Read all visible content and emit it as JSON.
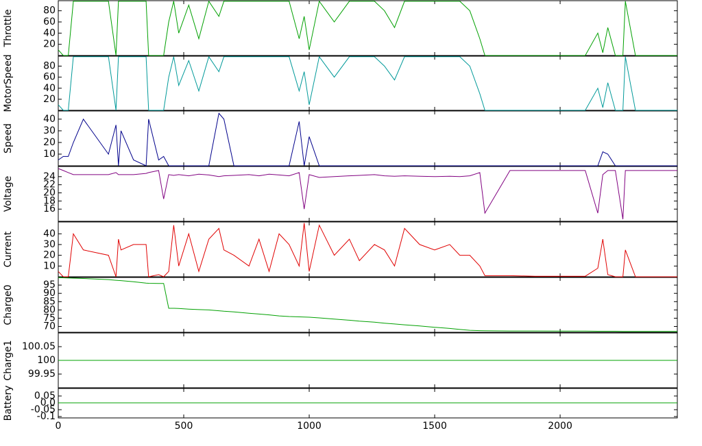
{
  "chart_data": [
    {
      "type": "line",
      "ylabel": "Throttle",
      "color": "#00a000",
      "x": [
        0,
        20,
        40,
        60,
        100,
        200,
        230,
        240,
        250,
        300,
        350,
        360,
        400,
        420,
        440,
        460,
        480,
        520,
        560,
        600,
        640,
        660,
        700,
        760,
        800,
        840,
        880,
        920,
        960,
        980,
        1000,
        1040,
        1100,
        1160,
        1200,
        1260,
        1300,
        1340,
        1380,
        1440,
        1500,
        1560,
        1600,
        1640,
        1680,
        1700,
        1800,
        1900,
        2000,
        2100,
        2150,
        2170,
        2190,
        2220,
        2250,
        2260,
        2300,
        2467
      ],
      "values": [
        10,
        0,
        0,
        97,
        97,
        97,
        0,
        97,
        97,
        97,
        97,
        0,
        0,
        0,
        60,
        97,
        40,
        90,
        30,
        97,
        70,
        97,
        97,
        97,
        97,
        97,
        97,
        97,
        30,
        70,
        10,
        97,
        60,
        97,
        97,
        97,
        80,
        50,
        97,
        97,
        97,
        97,
        97,
        80,
        30,
        0,
        0,
        0,
        0,
        0,
        40,
        5,
        50,
        0,
        0,
        97,
        0,
        0
      ],
      "xlim": [
        0,
        2467
      ],
      "xticks": [
        0,
        500,
        1000,
        1500,
        2000
      ],
      "ylim": [
        0,
        98
      ],
      "yticks": [
        20,
        40,
        60,
        80
      ]
    },
    {
      "type": "line",
      "ylabel": "MotorSpeed",
      "color": "#009999",
      "x": [
        0,
        20,
        40,
        60,
        100,
        200,
        230,
        240,
        250,
        300,
        350,
        360,
        400,
        420,
        440,
        460,
        480,
        520,
        560,
        600,
        640,
        660,
        700,
        760,
        800,
        840,
        880,
        920,
        960,
        980,
        1000,
        1040,
        1100,
        1160,
        1200,
        1260,
        1300,
        1340,
        1380,
        1440,
        1500,
        1560,
        1600,
        1640,
        1680,
        1700,
        1800,
        1900,
        2000,
        2100,
        2150,
        2170,
        2190,
        2220,
        2250,
        2260,
        2300,
        2467
      ],
      "values": [
        10,
        0,
        0,
        97,
        97,
        97,
        0,
        97,
        97,
        97,
        97,
        0,
        0,
        0,
        60,
        97,
        45,
        90,
        35,
        97,
        70,
        97,
        97,
        97,
        97,
        97,
        97,
        97,
        35,
        70,
        10,
        97,
        60,
        97,
        97,
        97,
        80,
        55,
        97,
        97,
        97,
        97,
        97,
        80,
        30,
        0,
        0,
        0,
        0,
        0,
        40,
        5,
        50,
        0,
        0,
        97,
        0,
        0
      ],
      "xlim": [
        0,
        2467
      ],
      "xticks": [
        0,
        500,
        1000,
        1500,
        2000
      ],
      "ylim": [
        0,
        98
      ],
      "yticks": [
        20,
        40,
        60,
        80
      ]
    },
    {
      "type": "line",
      "ylabel": "Speed",
      "color": "#00008b",
      "x": [
        0,
        20,
        40,
        60,
        100,
        200,
        230,
        240,
        250,
        300,
        350,
        360,
        400,
        420,
        440,
        460,
        480,
        520,
        560,
        600,
        640,
        660,
        700,
        760,
        800,
        840,
        880,
        920,
        960,
        980,
        1000,
        1040,
        1100,
        1160,
        1200,
        1260,
        1300,
        1340,
        1380,
        1440,
        1500,
        1560,
        1600,
        1640,
        1680,
        1700,
        1800,
        1900,
        2000,
        2100,
        2150,
        2170,
        2190,
        2220,
        2250,
        2260,
        2300,
        2467
      ],
      "values": [
        5,
        8,
        8,
        20,
        40,
        10,
        35,
        0,
        30,
        5,
        0,
        40,
        5,
        8,
        0,
        0,
        0,
        0,
        0,
        0,
        45,
        40,
        0,
        0,
        0,
        0,
        0,
        0,
        38,
        0,
        25,
        0,
        0,
        0,
        0,
        0,
        0,
        0,
        0,
        0,
        0,
        0,
        0,
        0,
        0,
        0,
        0,
        0,
        0,
        0,
        0,
        12,
        10,
        0,
        0,
        0,
        0,
        0
      ],
      "xlim": [
        0,
        2467
      ],
      "xticks": [
        0,
        500,
        1000,
        1500,
        2000
      ],
      "ylim": [
        0,
        47
      ],
      "yticks": [
        10,
        20,
        30,
        40
      ]
    },
    {
      "type": "line",
      "ylabel": "Voltage",
      "color": "#800080",
      "x": [
        0,
        20,
        40,
        60,
        100,
        200,
        230,
        240,
        250,
        300,
        350,
        360,
        400,
        420,
        440,
        460,
        480,
        520,
        560,
        600,
        640,
        660,
        700,
        760,
        800,
        840,
        880,
        920,
        960,
        980,
        1000,
        1040,
        1100,
        1160,
        1200,
        1260,
        1300,
        1340,
        1380,
        1440,
        1500,
        1560,
        1600,
        1640,
        1680,
        1700,
        1800,
        1900,
        2000,
        2100,
        2150,
        2170,
        2190,
        2220,
        2250,
        2260,
        2300,
        2467
      ],
      "values": [
        26,
        25.5,
        25,
        24.5,
        24.5,
        24.5,
        25,
        24.5,
        24.5,
        24.5,
        24.8,
        25,
        25.5,
        18.5,
        24.5,
        24.3,
        24.5,
        24.2,
        24.6,
        24.4,
        24,
        24.2,
        24.3,
        24.5,
        24.2,
        24.6,
        24.4,
        24.2,
        25,
        16,
        24.5,
        23.8,
        24,
        24.2,
        24.3,
        24.5,
        24.2,
        24.1,
        24.2,
        24.1,
        24,
        24.1,
        24,
        24.2,
        25,
        15,
        25.5,
        25.5,
        25.5,
        25.5,
        15,
        24.5,
        25.5,
        25.5,
        13.5,
        25.5,
        25.5,
        25.5
      ],
      "xlim": [
        0,
        2467
      ],
      "xticks": [
        0,
        500,
        1000,
        1500,
        2000
      ],
      "ylim": [
        13,
        26.5
      ],
      "yticks": [
        16,
        18,
        20,
        22,
        24
      ]
    },
    {
      "type": "line",
      "ylabel": "Current",
      "color": "#e00000",
      "x": [
        0,
        20,
        40,
        60,
        100,
        200,
        230,
        240,
        250,
        300,
        350,
        360,
        400,
        420,
        440,
        460,
        480,
        520,
        560,
        600,
        640,
        660,
        700,
        760,
        800,
        840,
        880,
        920,
        960,
        980,
        1000,
        1040,
        1100,
        1160,
        1200,
        1260,
        1300,
        1340,
        1380,
        1440,
        1500,
        1560,
        1600,
        1640,
        1680,
        1700,
        1800,
        1900,
        2000,
        2100,
        2150,
        2170,
        2190,
        2220,
        2250,
        2260,
        2300,
        2467
      ],
      "values": [
        5,
        0,
        0,
        40,
        25,
        20,
        0,
        35,
        25,
        30,
        30,
        0,
        2,
        0,
        5,
        48,
        10,
        40,
        5,
        35,
        45,
        25,
        20,
        10,
        35,
        5,
        40,
        30,
        10,
        50,
        5,
        48,
        20,
        35,
        15,
        30,
        25,
        10,
        45,
        30,
        25,
        30,
        20,
        20,
        10,
        1,
        1,
        0.5,
        0.5,
        0.5,
        8,
        35,
        2,
        0,
        0,
        25,
        0,
        0
      ],
      "xlim": [
        0,
        2467
      ],
      "xticks": [
        0,
        500,
        1000,
        1500,
        2000
      ],
      "ylim": [
        0,
        51
      ],
      "yticks": [
        10,
        20,
        30,
        40
      ]
    },
    {
      "type": "line",
      "ylabel": "Charge0",
      "color": "#00a000",
      "x": [
        0,
        20,
        40,
        60,
        100,
        200,
        230,
        240,
        250,
        300,
        350,
        360,
        400,
        420,
        440,
        460,
        480,
        520,
        560,
        600,
        640,
        660,
        700,
        760,
        800,
        840,
        880,
        920,
        960,
        980,
        1000,
        1040,
        1100,
        1160,
        1200,
        1260,
        1300,
        1340,
        1380,
        1440,
        1500,
        1560,
        1600,
        1640,
        1680,
        1700,
        1800,
        1900,
        2000,
        2100,
        2150,
        2170,
        2190,
        2220,
        2250,
        2260,
        2300,
        2467
      ],
      "values": [
        99.5,
        99.4,
        99.3,
        99.2,
        99,
        98.3,
        97.9,
        97.8,
        97.7,
        97,
        96.2,
        96.1,
        96,
        96,
        81,
        81,
        80.9,
        80.5,
        80.2,
        80,
        79.5,
        79.2,
        78.8,
        78,
        77.5,
        77,
        76.4,
        76,
        75.8,
        75.7,
        75.6,
        75.2,
        74.5,
        73.8,
        73.2,
        72.6,
        72,
        71.5,
        71,
        70.3,
        69.5,
        68.8,
        68.2,
        67.7,
        67.5,
        67.4,
        67.3,
        67.3,
        67.2,
        67.2,
        67.1,
        67.1,
        67.1,
        67.1,
        67,
        67,
        67,
        67
      ],
      "xlim": [
        0,
        2467
      ],
      "xticks": [
        0,
        500,
        1000,
        1500,
        2000
      ],
      "ylim": [
        66.5,
        99.6
      ],
      "yticks": [
        70,
        75,
        80,
        85,
        90,
        95
      ]
    },
    {
      "type": "line",
      "ylabel": "Charge1",
      "color": "#00a000",
      "x": [
        0,
        2467
      ],
      "values": [
        100,
        100
      ],
      "xlim": [
        0,
        2467
      ],
      "xticks": [
        0,
        500,
        1000,
        1500,
        2000
      ],
      "ylim": [
        99.9,
        100.1
      ],
      "yticks": [
        99.95,
        100,
        100.05
      ]
    },
    {
      "type": "line",
      "ylabel": "Battery",
      "color": "#00a000",
      "x": [
        0,
        2467
      ],
      "values": [
        0,
        0
      ],
      "xlim": [
        0,
        2467
      ],
      "xticks": [
        0,
        500,
        1000,
        1500,
        2000
      ],
      "ylim": [
        -0.11,
        0.105
      ],
      "yticks": [
        -0.1,
        -0.05,
        {
          "value": 0,
          "label": "0.0"
        },
        0.05
      ]
    }
  ]
}
